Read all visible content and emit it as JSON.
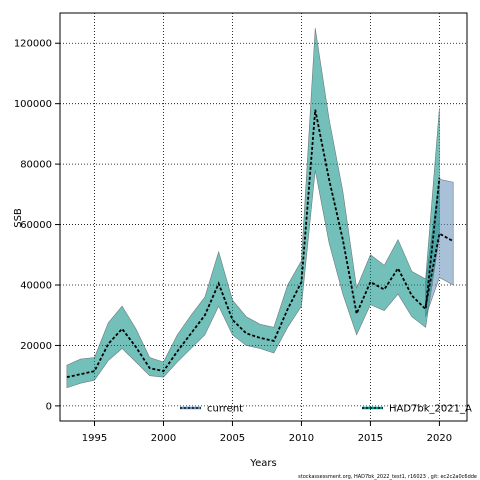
{
  "chart_data": {
    "type": "line",
    "xlabel": "Years",
    "ylabel": "SSB",
    "xlim": [
      1992.5,
      2022
    ],
    "ylim": [
      -5000,
      130000
    ],
    "x_ticks": [
      1995,
      2000,
      2005,
      2010,
      2015,
      2020
    ],
    "y_ticks": [
      0,
      20000,
      40000,
      60000,
      80000,
      100000,
      120000
    ],
    "grid": true,
    "legend_position": "bottom",
    "series": [
      {
        "name": "HAD7bk_2021_A",
        "color": "#009688",
        "x": [
          1993,
          1994,
          1995,
          1996,
          1997,
          1998,
          1999,
          2000,
          2001,
          2002,
          2003,
          2004,
          2005,
          2006,
          2007,
          2008,
          2009,
          2010,
          2011,
          2012,
          2013,
          2014,
          2015,
          2016,
          2017,
          2018,
          2019,
          2020
        ],
        "values": [
          9500,
          10500,
          11500,
          20500,
          25500,
          19500,
          12500,
          11500,
          18000,
          24000,
          30000,
          40500,
          28500,
          24000,
          22500,
          21500,
          32000,
          41000,
          98000,
          75000,
          55000,
          30500,
          41000,
          38500,
          45500,
          36500,
          32000,
          75500
        ],
        "lower": [
          6000,
          7500,
          8500,
          15000,
          19000,
          14500,
          10000,
          9500,
          14500,
          19000,
          23500,
          33000,
          23500,
          20000,
          19000,
          17500,
          26000,
          33000,
          78000,
          54000,
          37000,
          23500,
          33500,
          31500,
          37000,
          29500,
          26000,
          56000
        ],
        "upper": [
          13500,
          15500,
          16000,
          27500,
          33000,
          25500,
          16000,
          14500,
          23500,
          30000,
          36000,
          51000,
          35000,
          29500,
          27000,
          26000,
          40000,
          48000,
          125000,
          95000,
          71000,
          39000,
          50000,
          46500,
          55000,
          44500,
          42000,
          98500
        ]
      },
      {
        "name": "current",
        "color": "#5b8db8",
        "x": [
          2019,
          2020,
          2021
        ],
        "values": [
          33000,
          57000,
          54500
        ],
        "lower": [
          29500,
          42500,
          40000
        ],
        "upper": [
          41000,
          75000,
          74000
        ]
      }
    ]
  },
  "credit": "stockassessment.org, HAD7bk_2022_test1, r16023 , git: ec2c2a0c6dde"
}
